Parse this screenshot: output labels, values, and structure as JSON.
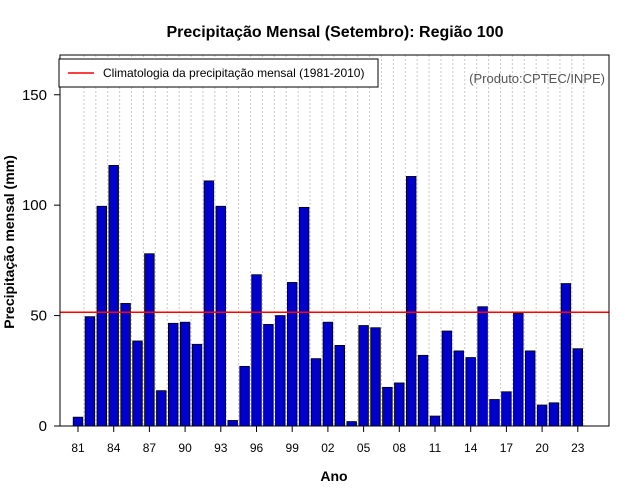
{
  "chart_data": {
    "type": "bar",
    "title": "Precipitação Mensal (Setembro): Região 100",
    "xlabel": "Ano",
    "ylabel": "Precipitação mensal (mm)",
    "credit": "(Produto:CPTEC/INPE)",
    "ylim": [
      0,
      168
    ],
    "yticks": [
      0,
      50,
      100,
      150
    ],
    "x_tick_labels": [
      "81",
      "84",
      "87",
      "90",
      "93",
      "96",
      "99",
      "02",
      "05",
      "08",
      "11",
      "14",
      "17",
      "20",
      "23"
    ],
    "categories": [
      "1981",
      "1982",
      "1983",
      "1984",
      "1985",
      "1986",
      "1987",
      "1988",
      "1989",
      "1990",
      "1991",
      "1992",
      "1993",
      "1994",
      "1995",
      "1996",
      "1997",
      "1998",
      "1999",
      "2000",
      "2001",
      "2002",
      "2003",
      "2004",
      "2005",
      "2006",
      "2007",
      "2008",
      "2009",
      "2010",
      "2011",
      "2012",
      "2013",
      "2014",
      "2015",
      "2016",
      "2017",
      "2018",
      "2019",
      "2020",
      "2021",
      "2022",
      "2023"
    ],
    "values": [
      4,
      49.5,
      99.5,
      118,
      55.5,
      38.5,
      78,
      16,
      46.5,
      47,
      37,
      111,
      99.5,
      2.5,
      27,
      68.5,
      46,
      50,
      65,
      99,
      30.5,
      47,
      36.5,
      2,
      45.5,
      44.5,
      17.5,
      19.5,
      113,
      32,
      4.5,
      43,
      34,
      31,
      54,
      12,
      15.5,
      51,
      34,
      9.5,
      10.5,
      64.5,
      35
    ],
    "bar_color": "#0000cd",
    "climatology": {
      "label": "Climatologia da precipitação mensal (1981-2010)",
      "value": 51.5,
      "color": "#ff0000"
    },
    "grid": "vertical-dotted",
    "legend": "top-left"
  }
}
